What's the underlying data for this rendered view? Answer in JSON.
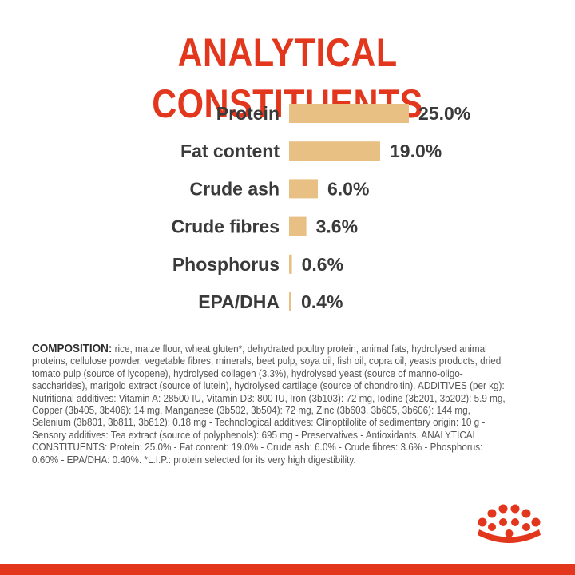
{
  "title": "ANALYTICAL CONSTITUENTS",
  "colors": {
    "brand_red": "#e2371c",
    "bar_fill": "#e8c083",
    "label_text": "#3a3a3a"
  },
  "chart_data": {
    "type": "bar",
    "orientation": "horizontal",
    "categories": [
      "Protein",
      "Fat content",
      "Crude ash",
      "Crude fibres",
      "Phosphorus",
      "EPA/DHA"
    ],
    "values": [
      25.0,
      19.0,
      6.0,
      3.6,
      0.6,
      0.4
    ],
    "value_labels": [
      "25.0%",
      "19.0%",
      "6.0%",
      "3.6%",
      "0.6%",
      "0.4%"
    ],
    "unit": "%",
    "grid": false,
    "legend": "none"
  },
  "composition": {
    "label": "COMPOSITION:",
    "text": " rice, maize flour, wheat gluten*, dehydrated poultry protein, animal fats, hydrolysed animal proteins, cellulose powder, vegetable fibres, minerals, beet pulp, soya oil, fish oil, copra oil, yeasts products, dried tomato pulp (source of lycopene), hydrolysed collagen (3.3%), hydrolysed yeast (source of manno-oligo-saccharides), marigold extract (source of lutein), hydrolysed cartilage (source of chondroitin). ADDITIVES (per kg): Nutritional additives: Vitamin A: 28500 IU, Vitamin D3: 800 IU, Iron (3b103): 72 mg, Iodine (3b201, 3b202): 5.9 mg, Copper (3b405, 3b406): 14 mg, Manganese (3b502, 3b504): 72 mg, Zinc (3b603, 3b605, 3b606): 144 mg, Selenium (3b801, 3b811, 3b812): 0.18 mg - Technological additives: Clinoptilolite of sedimentary origin: 10 g - Sensory additives: Tea extract (source of polyphenols): 695 mg - Preservatives - Antioxidants. ANALYTICAL CONSTITUENTS: Protein: 25.0% - Fat content: 19.0% - Crude ash: 6.0% - Crude fibres: 3.6% - Phosphorus: 0.60% - EPA/DHA: 0.40%. *L.I.P.: protein selected for its very high digestibility."
  },
  "logo": {
    "icon": "crown-icon"
  }
}
